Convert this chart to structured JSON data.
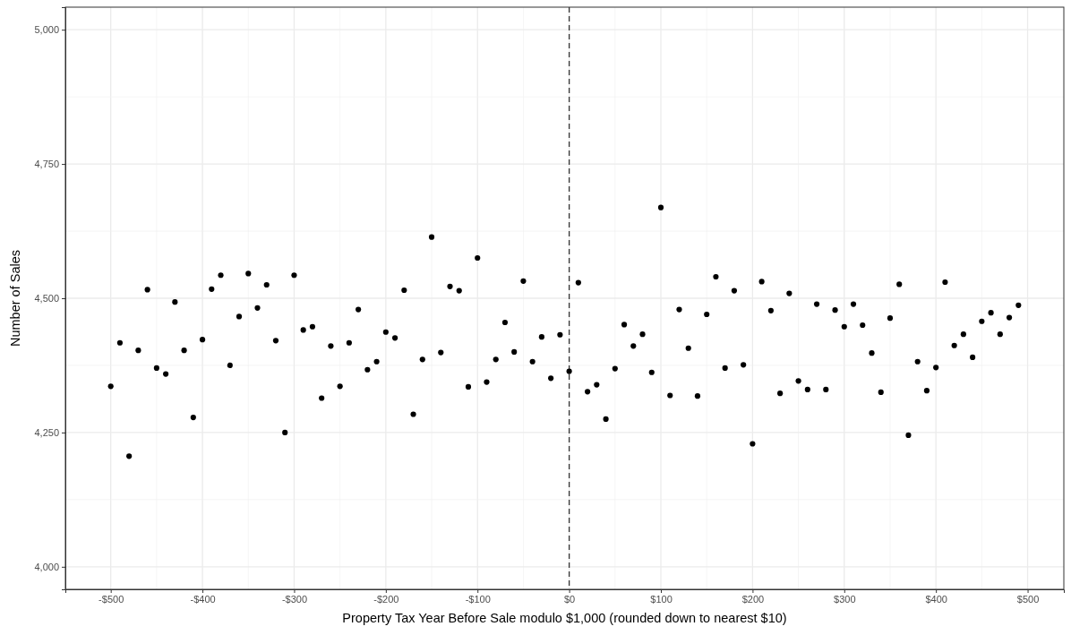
{
  "chart_data": {
    "type": "scatter",
    "xlabel": "Property Tax Year Before Sale modulo $1,000  (rounded down to nearest $10)",
    "ylabel": "Number of Sales",
    "x": [
      -500,
      -490,
      -480,
      -470,
      -460,
      -450,
      -440,
      -430,
      -420,
      -410,
      -400,
      -390,
      -380,
      -370,
      -360,
      -350,
      -340,
      -330,
      -320,
      -310,
      -300,
      -290,
      -280,
      -270,
      -260,
      -250,
      -240,
      -230,
      -220,
      -210,
      -200,
      -190,
      -180,
      -170,
      -160,
      -150,
      -140,
      -130,
      -120,
      -110,
      -100,
      -90,
      -80,
      -70,
      -60,
      -50,
      -40,
      -30,
      -20,
      -10,
      0,
      10,
      20,
      30,
      40,
      50,
      60,
      70,
      80,
      90,
      100,
      110,
      120,
      130,
      140,
      150,
      160,
      170,
      180,
      190,
      200,
      210,
      220,
      230,
      240,
      250,
      260,
      270,
      280,
      290,
      300,
      310,
      320,
      330,
      340,
      350,
      360,
      370,
      380,
      390,
      400,
      410,
      420,
      430,
      440,
      450,
      460,
      470,
      480,
      490
    ],
    "series": [
      {
        "color": "#000000",
        "values": [
          4336,
          4417,
          4206,
          4403,
          4516,
          4370,
          4359,
          4493,
          4403,
          4278,
          4423,
          4517,
          4543,
          4375,
          4466,
          4546,
          4482,
          4525,
          4421,
          4250,
          4543,
          4441,
          4447,
          4314,
          4411,
          4336,
          4417,
          4479,
          4367,
          4382,
          4437,
          4426,
          4515,
          4284,
          4386,
          4614,
          4399,
          4522,
          4514,
          4335,
          4575,
          4344,
          4386,
          4455,
          4400,
          4532,
          4382,
          4428,
          4351,
          4432,
          4364,
          4529,
          4326,
          4339,
          4275,
          4369,
          4451,
          4411,
          4433,
          4362,
          4669,
          4319,
          4479,
          4407,
          4318,
          4470,
          4540,
          4370,
          4514,
          4376,
          4229,
          4531,
          4477,
          4323,
          4509,
          4346,
          4330,
          4489,
          4330,
          4478,
          4447,
          4489,
          4450,
          4398,
          4325,
          4463,
          4526,
          4245,
          4382,
          4328,
          4371,
          4530,
          4412,
          4433,
          4390,
          4457,
          4473,
          4433,
          4464,
          4487
        ]
      }
    ],
    "xlim": [
      -549.5,
      539.5
    ],
    "xticks": [
      {
        "value": -500,
        "label": "-$500"
      },
      {
        "value": -400,
        "label": "-$400"
      },
      {
        "value": -300,
        "label": "-$300"
      },
      {
        "value": -200,
        "label": "-$200"
      },
      {
        "value": -100,
        "label": "-$100"
      },
      {
        "value": 0,
        "label": "$0"
      },
      {
        "value": 100,
        "label": "$100"
      },
      {
        "value": 200,
        "label": "$200"
      },
      {
        "value": 300,
        "label": "$300"
      },
      {
        "value": 400,
        "label": "$400"
      },
      {
        "value": 500,
        "label": "$500"
      }
    ],
    "ylim": [
      3958,
      5042
    ],
    "yticks": [
      {
        "value": 4000,
        "label": "4,000"
      },
      {
        "value": 4250,
        "label": "4,250"
      },
      {
        "value": 4500,
        "label": "4,500"
      },
      {
        "value": 4750,
        "label": "4,750"
      },
      {
        "value": 5000,
        "label": "5,000"
      }
    ],
    "grid": true,
    "marker": "circle",
    "ref_lines": [
      {
        "axis": "x",
        "value": 0,
        "color": "#333333",
        "line_style": "dashed"
      }
    ]
  }
}
